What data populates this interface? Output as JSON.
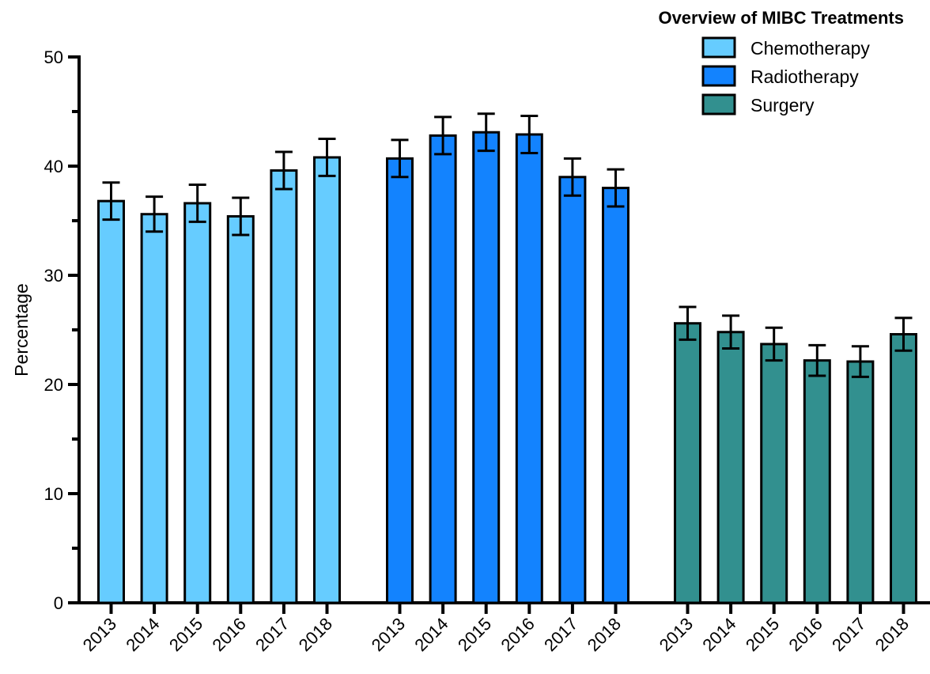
{
  "chart_data": {
    "type": "bar",
    "title": "",
    "ylabel": "Percentage",
    "xlabel": "",
    "ylim": [
      0,
      50
    ],
    "yticks": [
      0,
      10,
      20,
      30,
      40,
      50
    ],
    "grid": false,
    "legend": {
      "title": "Overview of MIBC Treatments",
      "placement": "top-right"
    },
    "categories": [
      "2013",
      "2014",
      "2015",
      "2016",
      "2017",
      "2018"
    ],
    "series": [
      {
        "name": "Chemotherapy",
        "color": "#66ccff",
        "values": [
          36.8,
          35.6,
          36.6,
          35.4,
          39.6,
          40.8
        ],
        "errors": [
          1.7,
          1.6,
          1.7,
          1.7,
          1.7,
          1.7
        ]
      },
      {
        "name": "Radiotherapy",
        "color": "#1383fe",
        "values": [
          40.7,
          42.8,
          43.1,
          42.9,
          39.0,
          38.0
        ],
        "errors": [
          1.7,
          1.7,
          1.7,
          1.7,
          1.7,
          1.7
        ]
      },
      {
        "name": "Surgery",
        "color": "#32908f",
        "values": [
          25.6,
          24.8,
          23.7,
          22.2,
          22.1,
          24.6
        ],
        "errors": [
          1.5,
          1.5,
          1.5,
          1.4,
          1.4,
          1.5
        ]
      }
    ]
  }
}
